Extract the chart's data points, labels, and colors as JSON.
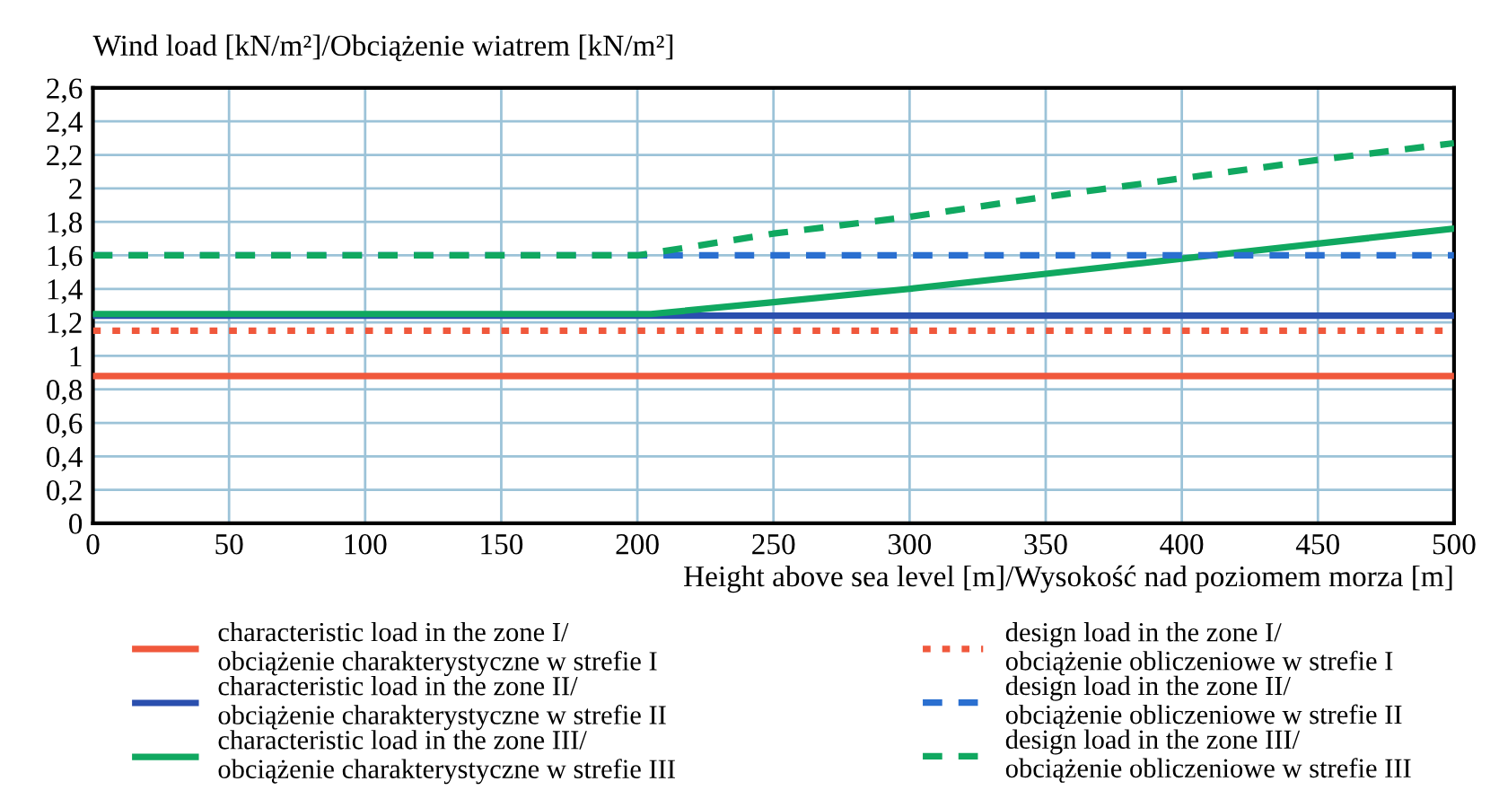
{
  "chart_data": {
    "type": "line",
    "ylabel": "Wind load [kN/m²]/Obciążenie wiatrem [kN/m²]",
    "xlabel": "Height above sea level [m]/Wysokość nad poziomem morza [m]",
    "xlim": [
      0,
      500
    ],
    "xticks": [
      0,
      50,
      100,
      150,
      200,
      250,
      300,
      350,
      400,
      450,
      500
    ],
    "ylim": [
      0,
      2.6
    ],
    "yticks": [
      0,
      {
        "value": 0.2,
        "label": "0,2"
      },
      {
        "value": 0.4,
        "label": "0,4"
      },
      {
        "value": 0.6,
        "label": "0,6"
      },
      {
        "value": 0.8,
        "label": "0,8"
      },
      1,
      {
        "value": 1.2,
        "label": "1,2"
      },
      {
        "value": 1.4,
        "label": "1,4"
      },
      {
        "value": 1.6,
        "label": "1,6"
      },
      {
        "value": 1.8,
        "label": "1,8"
      },
      2,
      {
        "value": 2.2,
        "label": "2,2"
      },
      {
        "value": 2.4,
        "label": "2,4"
      },
      {
        "value": 2.6,
        "label": "2,6"
      }
    ],
    "grid": true,
    "legend": "bottom",
    "series": [
      {
        "name": "characteristic load in the zone I/\nobciążenie charakterystyczne w strefie I",
        "color": "#f0583c",
        "line_style": "solid",
        "x": [
          0,
          500
        ],
        "values": [
          0.88,
          0.88
        ]
      },
      {
        "name": "characteristic load in the zone II/\nobciążenie charakterystyczne w strefie II",
        "color": "#2a4fae",
        "line_style": "solid",
        "x": [
          0,
          500
        ],
        "values": [
          1.24,
          1.24
        ]
      },
      {
        "name": "characteristic load in the zone III/\nobciążenie charakterystyczne w strefie III",
        "color": "#10a860",
        "line_style": "solid",
        "x": [
          0,
          205,
          250,
          300,
          350,
          400,
          450,
          500
        ],
        "values": [
          1.25,
          1.25,
          1.32,
          1.4,
          1.49,
          1.58,
          1.67,
          1.76
        ]
      },
      {
        "name": "design load in the zone I/\nobciążenie obliczeniowe w strefie I",
        "color": "#f0583c",
        "line_style": "dotted",
        "x": [
          0,
          500
        ],
        "values": [
          1.15,
          1.15
        ]
      },
      {
        "name": "design load in the zone II/\nobciążenie obliczeniowe w strefie II",
        "color": "#2a6fd0",
        "line_style": "dashed",
        "x": [
          0,
          500
        ],
        "values": [
          1.6,
          1.6
        ]
      },
      {
        "name": "design load in the zone III/\nobciążenie obliczeniowe w strefie III",
        "color": "#10a860",
        "line_style": "dashed",
        "x": [
          0,
          200,
          250,
          300,
          350,
          400,
          450,
          500
        ],
        "values": [
          1.6,
          1.6,
          1.73,
          1.83,
          1.95,
          2.06,
          2.17,
          2.27
        ]
      }
    ]
  }
}
